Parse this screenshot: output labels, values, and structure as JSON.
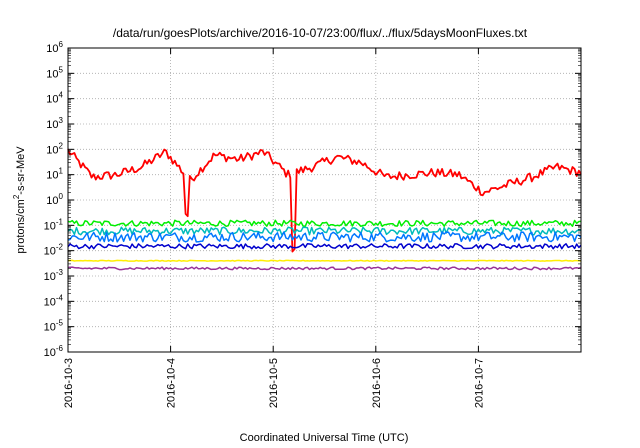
{
  "chart_data": {
    "type": "line",
    "title": "/data/run/goesPlots/archive/2016-10-07/23:00/flux/../flux/5daysMoonFluxes.txt",
    "xlabel": "Coordinated Universal Time (UTC)",
    "ylabel": "protons/cm2-s-sr-MeV",
    "ylabel_parts": {
      "pre": "protons/cm",
      "sup": "2",
      "post": "-s-sr-MeV"
    },
    "yscale": "log",
    "ylim_exponents": [
      -6,
      6
    ],
    "y_tick_base": "10",
    "y_tick_exponents": [
      "-6",
      "-5",
      "-4",
      "-3",
      "-2",
      "-1",
      "0",
      "1",
      "2",
      "3",
      "4",
      "5",
      "6"
    ],
    "xlim": [
      "2016-10-03",
      "2016-10-08"
    ],
    "x_ticks": [
      "2016-10-3",
      "2016-10-4",
      "2016-10-5",
      "2016-10-6",
      "2016-10-7"
    ],
    "grid": true,
    "grid_style": "dotted",
    "series": [
      {
        "color": "#ff0000",
        "base": [
          90,
          8,
          10,
          20,
          80,
          6,
          60,
          40,
          80,
          10,
          20,
          50,
          30,
          8,
          10,
          12,
          10,
          2,
          4,
          8,
          20,
          12
        ],
        "spread_dex": 0.18,
        "dips": [
          [
            1.15,
            1.5
          ],
          [
            2.2,
            3.0
          ]
        ]
      },
      {
        "color": "#00ee00",
        "base": [
          0.12
        ],
        "spread_dex": 0.12,
        "dips": []
      },
      {
        "color": "#00bbbb",
        "base": [
          0.06
        ],
        "spread_dex": 0.15,
        "dips": []
      },
      {
        "color": "#0077ff",
        "base": [
          0.035
        ],
        "spread_dex": 0.2,
        "dips": []
      },
      {
        "color": "#0000cc",
        "base": [
          0.015
        ],
        "spread_dex": 0.1,
        "dips": []
      },
      {
        "color": "#ffee00",
        "base": [
          0.004
        ],
        "spread_dex": 0.015,
        "dips": []
      },
      {
        "color": "#993399",
        "base": [
          0.002
        ],
        "spread_dex": 0.05,
        "dips": []
      }
    ]
  }
}
